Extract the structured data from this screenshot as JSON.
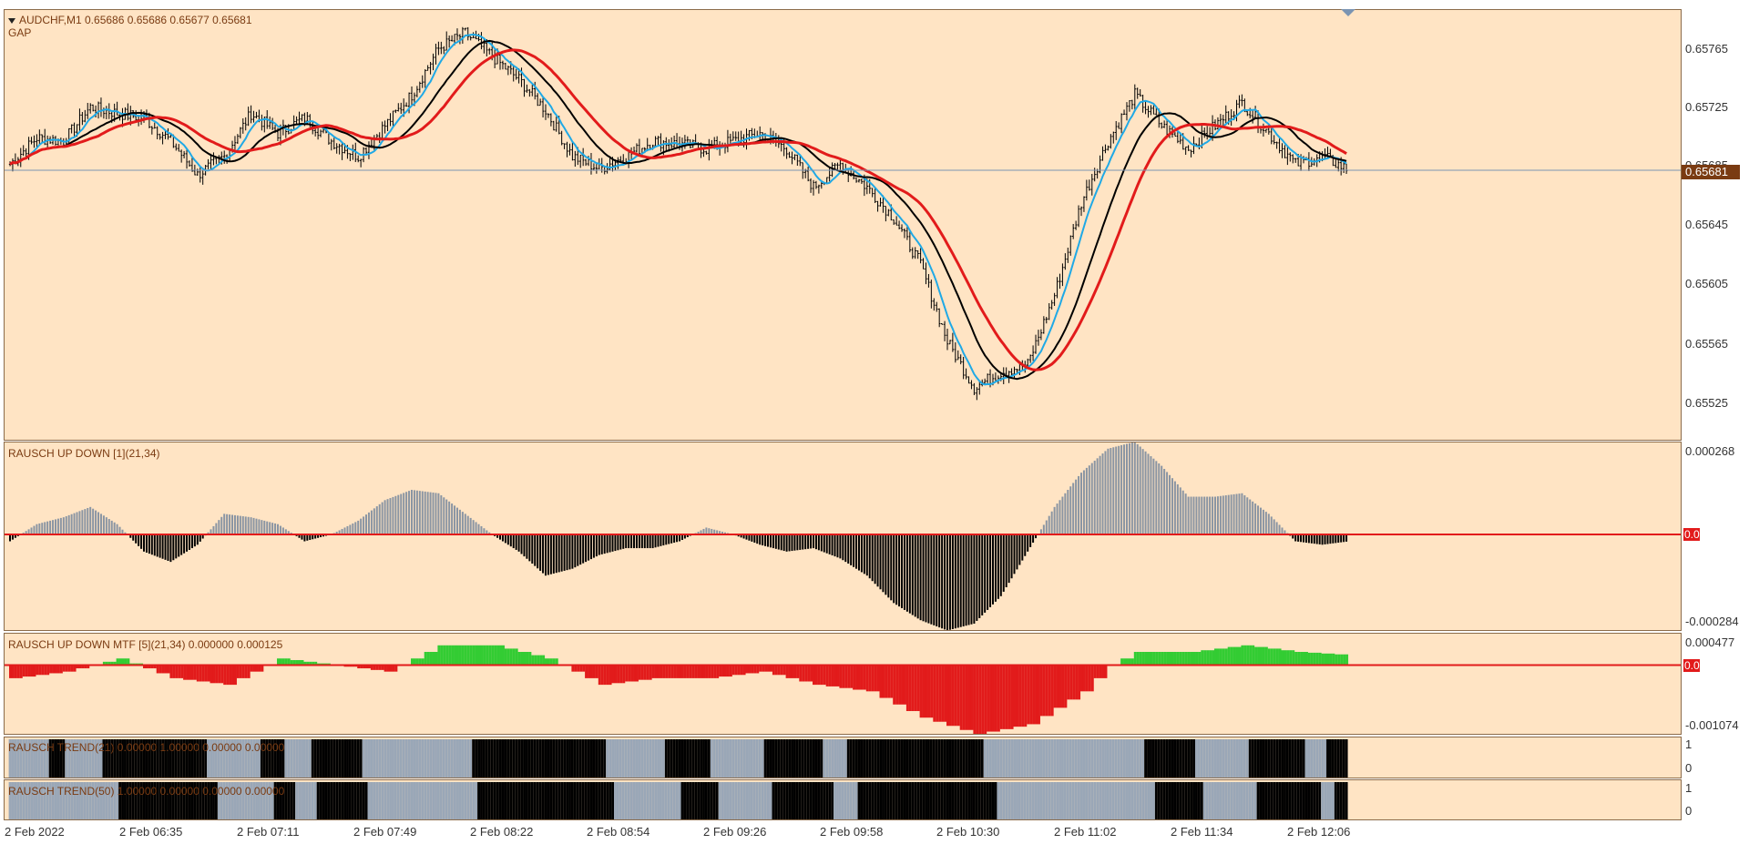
{
  "main_panel": {
    "title": "AUDCHF,M1  0.65686 0.65686 0.65677 0.65681",
    "indicator_label": "GAP",
    "current_price": "0.65681"
  },
  "price_scale": [
    "0.65765",
    "0.65725",
    "0.65685",
    "0.65645",
    "0.65605",
    "0.65565",
    "0.65525"
  ],
  "panels": {
    "up_down": {
      "label": "RAUSCH UP DOWN [1](21,34)",
      "scale_max": "0.000268",
      "zero": "0.00",
      "scale_min": "-0.000284"
    },
    "mtf": {
      "label": "RAUSCH UP DOWN MTF [5](21,34) 0.000000 0.000125",
      "scale_max": "0.000477",
      "zero": "0.00",
      "scale_min": "-0.001074"
    },
    "trend21": {
      "label": "RAUSCH TREND(21) 0.00000 1.00000 0.00000 0.00000",
      "scale_max": "1",
      "scale_min": "0"
    },
    "trend50": {
      "label": "RAUSCH TREND(50) 1.00000 0.00000 0.00000 0.00000",
      "scale_max": "1",
      "scale_min": "0"
    }
  },
  "time_axis": [
    "2 Feb 2022",
    "2 Feb 06:35",
    "2 Feb 07:11",
    "2 Feb 07:49",
    "2 Feb 08:22",
    "2 Feb 08:54",
    "2 Feb 09:26",
    "2 Feb 09:58",
    "2 Feb 10:30",
    "2 Feb 11:02",
    "2 Feb 11:34",
    "2 Feb 12:06"
  ],
  "colors": {
    "background": "#ffe4c4",
    "bar": "#000000",
    "ma_fast": "#1fa9e6",
    "ma_mid": "#000000",
    "ma_slow": "#e21b1b",
    "hist_up": "#8a95a3",
    "hist_down": "#000000",
    "mtf_up": "#33cc33",
    "mtf_down": "#e21b1b",
    "trend_up": "#9aa7b7",
    "trend_down": "#000000",
    "price_line": "#7b94b2"
  },
  "chart_data": {
    "type": "line",
    "price_range": [
      0.65505,
      0.65785
    ],
    "price_knots": [
      [
        0,
        0.65685
      ],
      [
        10,
        0.65702
      ],
      [
        20,
        0.657
      ],
      [
        30,
        0.65722
      ],
      [
        40,
        0.65718
      ],
      [
        50,
        0.65715
      ],
      [
        60,
        0.657
      ],
      [
        70,
        0.65678
      ],
      [
        80,
        0.6569
      ],
      [
        90,
        0.65718
      ],
      [
        100,
        0.65705
      ],
      [
        110,
        0.65715
      ],
      [
        120,
        0.657
      ],
      [
        130,
        0.6569
      ],
      [
        140,
        0.6571
      ],
      [
        150,
        0.6573
      ],
      [
        160,
        0.6576
      ],
      [
        170,
        0.6577
      ],
      [
        180,
        0.65755
      ],
      [
        190,
        0.6574
      ],
      [
        200,
        0.6572
      ],
      [
        210,
        0.6569
      ],
      [
        220,
        0.65682
      ],
      [
        230,
        0.6569
      ],
      [
        240,
        0.657
      ],
      [
        250,
        0.65698
      ],
      [
        260,
        0.65695
      ],
      [
        270,
        0.657
      ],
      [
        280,
        0.65705
      ],
      [
        290,
        0.65695
      ],
      [
        300,
        0.6567
      ],
      [
        310,
        0.65685
      ],
      [
        320,
        0.6567
      ],
      [
        330,
        0.6565
      ],
      [
        340,
        0.6562
      ],
      [
        350,
        0.6557
      ],
      [
        360,
        0.6554
      ],
      [
        370,
        0.6555
      ],
      [
        380,
        0.65555
      ],
      [
        390,
        0.656
      ],
      [
        400,
        0.6566
      ],
      [
        410,
        0.657
      ],
      [
        420,
        0.6573
      ],
      [
        430,
        0.6571
      ],
      [
        440,
        0.65695
      ],
      [
        450,
        0.6571
      ],
      [
        460,
        0.65725
      ],
      [
        470,
        0.65705
      ],
      [
        480,
        0.65685
      ],
      [
        490,
        0.6569
      ],
      [
        500,
        0.65681
      ]
    ],
    "ud_range": [
      -0.000284,
      0.000268
    ],
    "ud_knots": [
      [
        0,
        -2e-05
      ],
      [
        10,
        3e-05
      ],
      [
        20,
        5e-05
      ],
      [
        30,
        8e-05
      ],
      [
        40,
        3e-05
      ],
      [
        50,
        -5e-05
      ],
      [
        60,
        -8e-05
      ],
      [
        70,
        -3e-05
      ],
      [
        80,
        6e-05
      ],
      [
        90,
        5e-05
      ],
      [
        100,
        3e-05
      ],
      [
        110,
        -2e-05
      ],
      [
        120,
        0.0
      ],
      [
        130,
        4e-05
      ],
      [
        140,
        0.0001
      ],
      [
        150,
        0.00013
      ],
      [
        160,
        0.00012
      ],
      [
        170,
        6e-05
      ],
      [
        180,
        0.0
      ],
      [
        190,
        -5e-05
      ],
      [
        200,
        -0.00012
      ],
      [
        210,
        -0.0001
      ],
      [
        220,
        -6e-05
      ],
      [
        230,
        -4e-05
      ],
      [
        240,
        -4e-05
      ],
      [
        250,
        -2e-05
      ],
      [
        260,
        2e-05
      ],
      [
        270,
        0.0
      ],
      [
        280,
        -3e-05
      ],
      [
        290,
        -5e-05
      ],
      [
        300,
        -4e-05
      ],
      [
        310,
        -7e-05
      ],
      [
        320,
        -0.00012
      ],
      [
        330,
        -0.0002
      ],
      [
        340,
        -0.00025
      ],
      [
        350,
        -0.00028
      ],
      [
        360,
        -0.00026
      ],
      [
        370,
        -0.00018
      ],
      [
        380,
        -5e-05
      ],
      [
        390,
        8e-05
      ],
      [
        400,
        0.00018
      ],
      [
        410,
        0.00025
      ],
      [
        420,
        0.00027
      ],
      [
        430,
        0.0002
      ],
      [
        440,
        0.00011
      ],
      [
        450,
        0.00011
      ],
      [
        460,
        0.00012
      ],
      [
        470,
        6e-05
      ],
      [
        480,
        -2e-05
      ],
      [
        490,
        -3e-05
      ],
      [
        500,
        -2e-05
      ]
    ],
    "mtf_range": [
      -0.001074,
      0.000477
    ],
    "mtf_knots": [
      [
        0,
        -0.0002
      ],
      [
        20,
        -0.0001
      ],
      [
        40,
        0.0001
      ],
      [
        60,
        -0.0002
      ],
      [
        80,
        -0.0003
      ],
      [
        100,
        0.0001
      ],
      [
        120,
        0.0
      ],
      [
        140,
        -0.0001
      ],
      [
        160,
        0.0003
      ],
      [
        180,
        0.0003
      ],
      [
        200,
        0.0001
      ],
      [
        220,
        -0.0003
      ],
      [
        240,
        -0.0002
      ],
      [
        260,
        -0.0002
      ],
      [
        280,
        -0.0001
      ],
      [
        300,
        -0.0003
      ],
      [
        320,
        -0.0004
      ],
      [
        340,
        -0.0008
      ],
      [
        360,
        -0.00105
      ],
      [
        380,
        -0.0009
      ],
      [
        400,
        -0.0004
      ],
      [
        410,
        0.0
      ],
      [
        420,
        0.0002
      ],
      [
        440,
        0.0002
      ],
      [
        460,
        0.0003
      ],
      [
        480,
        0.0002
      ],
      [
        500,
        0.00015
      ]
    ],
    "bar_count": 500
  }
}
